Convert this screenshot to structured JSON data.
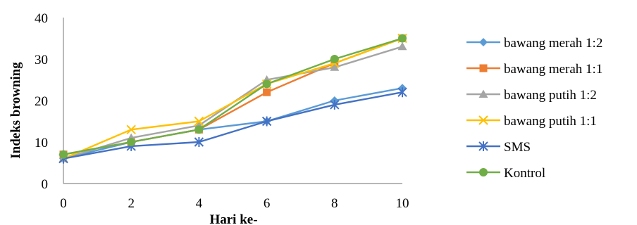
{
  "chart_data": {
    "type": "line",
    "xlabel": "Hari ke-",
    "ylabel": "Indeks browning",
    "xlim": [
      0,
      10
    ],
    "ylim": [
      0,
      40
    ],
    "x_ticks": [
      0,
      2,
      4,
      6,
      8,
      10
    ],
    "y_ticks": [
      0,
      10,
      20,
      30,
      40
    ],
    "grid": false,
    "legend_position": "right",
    "x": [
      0,
      2,
      4,
      6,
      8,
      10
    ],
    "series": [
      {
        "name": "bawang merah 1:2",
        "color": "#5B9BD5",
        "marker": "diamond",
        "values": [
          6,
          10,
          13,
          15,
          20,
          23
        ]
      },
      {
        "name": "bawang merah 1:1",
        "color": "#ED7D31",
        "marker": "square",
        "values": [
          7,
          10,
          13,
          22,
          29,
          35
        ]
      },
      {
        "name": "bawang putih 1:2",
        "color": "#A5A5A5",
        "marker": "triangle",
        "values": [
          6,
          11,
          14,
          25,
          28,
          33
        ]
      },
      {
        "name": "bawang putih 1:1",
        "color": "#FFC000",
        "marker": "x",
        "values": [
          6,
          13,
          15,
          24,
          29,
          35
        ]
      },
      {
        "name": "SMS",
        "color": "#4472C4",
        "marker": "asterisk",
        "values": [
          6,
          9,
          10,
          15,
          19,
          22
        ]
      },
      {
        "name": "Kontrol",
        "color": "#70AD47",
        "marker": "circle",
        "values": [
          7,
          10,
          13,
          24,
          30,
          35
        ]
      }
    ]
  }
}
